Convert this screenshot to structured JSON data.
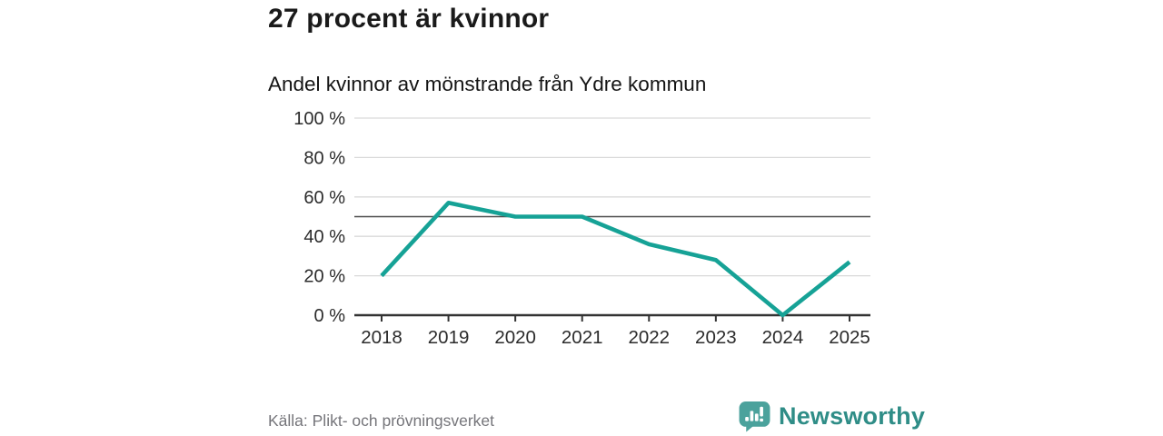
{
  "chart_data": {
    "type": "line",
    "title": "27 procent är kvinnor",
    "subtitle": "Andel kvinnor av mönstrande från Ydre kommun",
    "categories": [
      "2018",
      "2019",
      "2020",
      "2021",
      "2022",
      "2023",
      "2024",
      "2025"
    ],
    "values": [
      20,
      57,
      50,
      50,
      36,
      28,
      0,
      27
    ],
    "unit": "%",
    "ylim": [
      0,
      100
    ],
    "yticks": [
      0,
      20,
      40,
      60,
      80,
      100
    ],
    "ytick_suffix": " %",
    "reference_line": 50,
    "grid": true,
    "legend": "none",
    "line_color": "#16a296"
  },
  "colors": {
    "gridline": "#d9d9d9",
    "reference_line": "#4d4d4d",
    "axis": "#333333",
    "tick_text": "#2b2b2b",
    "source_text": "#75757a",
    "brand_text": "#2f8d87",
    "brand_icon": "#4ba29c"
  },
  "footer": {
    "source": "Källa: Plikt- och prövningsverket",
    "brand": {
      "name": "Newsworthy",
      "icon": "newsworthy-speech-bubble-bar-chart-icon"
    }
  }
}
